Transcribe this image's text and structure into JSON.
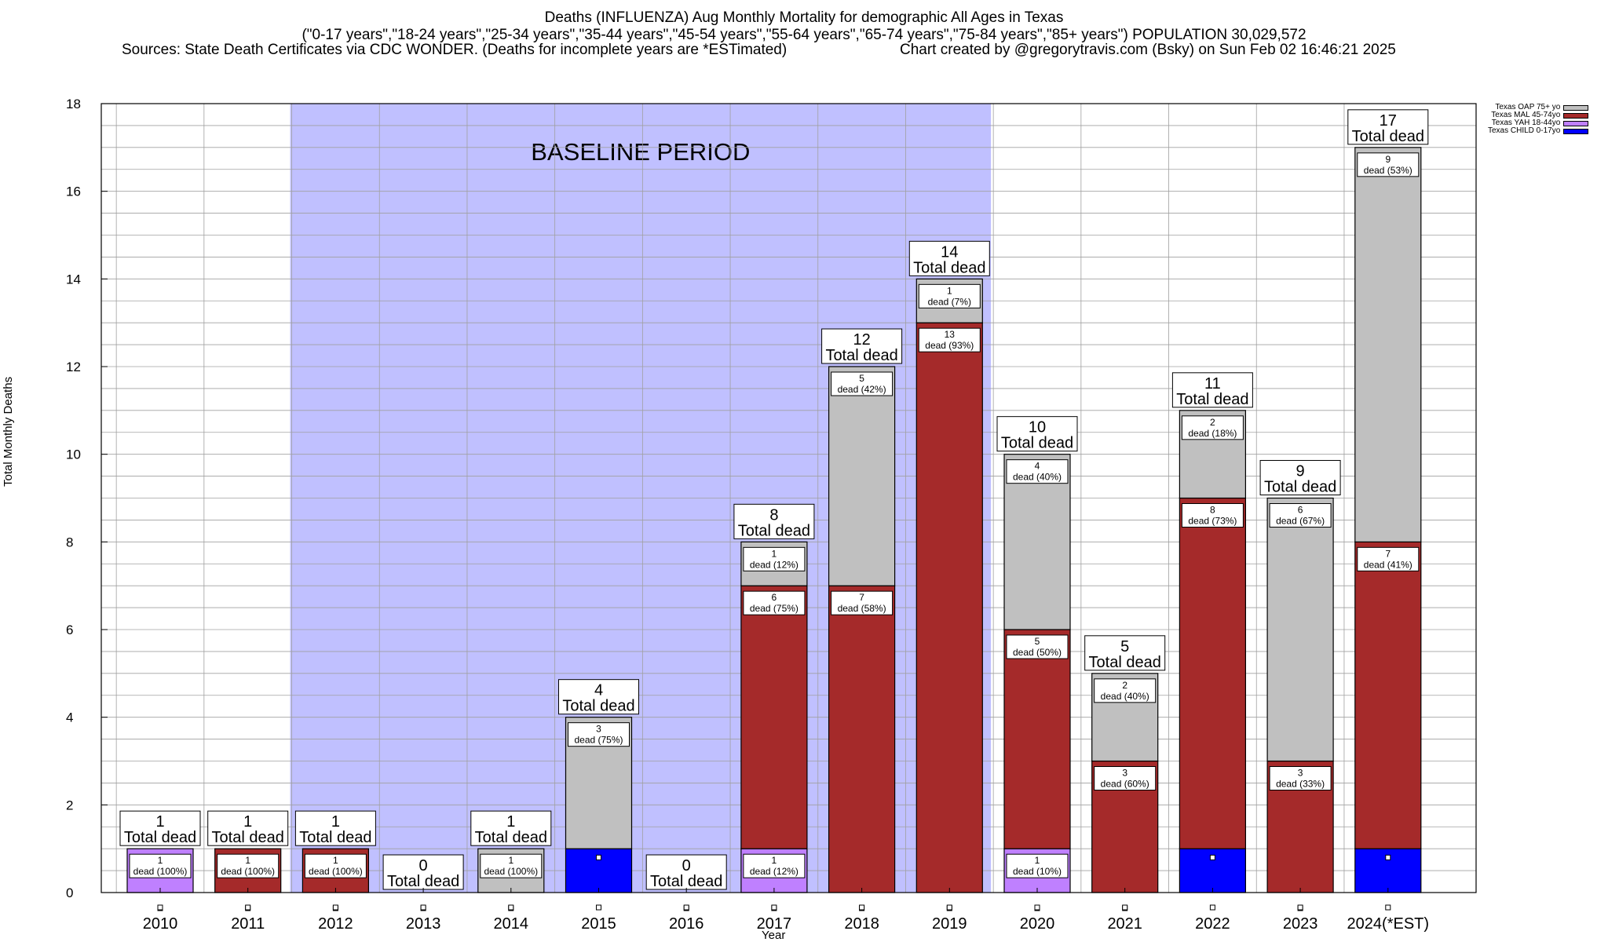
{
  "header": {
    "line1": "Deaths (INFLUENZA) Aug Monthly Mortality for demographic All Ages in Texas",
    "line2": "(\"0-17 years\",\"18-24 years\",\"25-34 years\",\"35-44 years\",\"45-54 years\",\"55-64 years\",\"65-74 years\",\"75-84 years\",\"85+ years\") POPULATION 30,029,572",
    "line3_left": "Sources: State Death Certificates via CDC WONDER. (Deaths for incomplete years are *ESTimated)",
    "line3_right": "Chart created by @gregorytravis.com (Bsky) on Sun Feb 02 16:46:21 2025"
  },
  "chart_data": {
    "type": "bar",
    "stacked": true,
    "xlabel": "Year",
    "ylabel": "Total Monthly Deaths",
    "ylim": [
      0,
      18
    ],
    "yticks": [
      "0",
      "2",
      "4",
      "6",
      "8",
      "10",
      "12",
      "14",
      "16",
      "18"
    ],
    "grid": true,
    "legend_position": "top-right",
    "categories": [
      "2010",
      "2011",
      "2012",
      "2013",
      "2014",
      "2015",
      "2016",
      "2017",
      "2018",
      "2019",
      "2020",
      "2021",
      "2022",
      "2023",
      "2024(*EST)"
    ],
    "series": [
      {
        "name": "Texas CHILD 0-17yo",
        "color": "#0000ff",
        "values": [
          0,
          0,
          0,
          0,
          0,
          1,
          0,
          0,
          0,
          0,
          0,
          0,
          1,
          0,
          1
        ]
      },
      {
        "name": "Texas YAH 18-44yo",
        "color": "#bf80ff",
        "values": [
          1,
          0,
          0,
          0,
          0,
          0,
          0,
          1,
          0,
          0,
          1,
          0,
          0,
          0,
          0
        ]
      },
      {
        "name": "Texas MAL 45-74yo",
        "color": "#a52a2a",
        "values": [
          0,
          1,
          1,
          0,
          0,
          0,
          0,
          6,
          7,
          13,
          5,
          3,
          8,
          3,
          7
        ]
      },
      {
        "name": "Texas OAP 75+ yo",
        "color": "#c0c0c0",
        "values": [
          0,
          0,
          0,
          0,
          1,
          3,
          0,
          1,
          5,
          1,
          4,
          2,
          2,
          6,
          9
        ]
      }
    ],
    "totals": [
      1,
      1,
      1,
      0,
      1,
      4,
      0,
      8,
      12,
      14,
      10,
      5,
      11,
      9,
      17
    ],
    "total_label": "Total dead",
    "segment_labels": [
      [
        {
          "series": 1,
          "count": "1",
          "text": "dead (100%)"
        }
      ],
      [
        {
          "series": 2,
          "count": "1",
          "text": "dead (100%)"
        }
      ],
      [
        {
          "series": 2,
          "count": "1",
          "text": "dead (100%)"
        }
      ],
      [],
      [
        {
          "series": 3,
          "count": "1",
          "text": "dead (100%)"
        }
      ],
      [
        {
          "series": 3,
          "count": "3",
          "text": "dead (75%)"
        }
      ],
      [],
      [
        {
          "series": 1,
          "count": "1",
          "text": "dead (12%)"
        },
        {
          "series": 2,
          "count": "6",
          "text": "dead (75%)"
        },
        {
          "series": 3,
          "count": "1",
          "text": "dead (12%)"
        }
      ],
      [
        {
          "series": 2,
          "count": "7",
          "text": "dead (58%)"
        },
        {
          "series": 3,
          "count": "5",
          "text": "dead (42%)"
        }
      ],
      [
        {
          "series": 2,
          "count": "13",
          "text": "dead (93%)"
        },
        {
          "series": 3,
          "count": "1",
          "text": "dead (7%)"
        }
      ],
      [
        {
          "series": 1,
          "count": "1",
          "text": "dead (10%)"
        },
        {
          "series": 2,
          "count": "5",
          "text": "dead (50%)"
        },
        {
          "series": 3,
          "count": "4",
          "text": "dead (40%)"
        }
      ],
      [
        {
          "series": 2,
          "count": "3",
          "text": "dead (60%)"
        },
        {
          "series": 3,
          "count": "2",
          "text": "dead (40%)"
        }
      ],
      [
        {
          "series": 2,
          "count": "8",
          "text": "dead (73%)"
        },
        {
          "series": 3,
          "count": "2",
          "text": "dead (18%)"
        }
      ],
      [
        {
          "series": 2,
          "count": "3",
          "text": "dead (33%)"
        },
        {
          "series": 3,
          "count": "6",
          "text": "dead (67%)"
        }
      ],
      [
        {
          "series": 2,
          "count": "7",
          "text": "dead (41%)"
        },
        {
          "series": 3,
          "count": "9",
          "text": "dead (53%)"
        }
      ]
    ],
    "baseline": {
      "label": "BASELINE PERIOD",
      "from": "2012",
      "to": "2019",
      "color": "#c0c0ff"
    }
  }
}
